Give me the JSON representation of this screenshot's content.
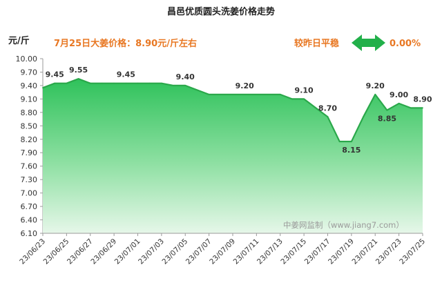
{
  "chart_data": {
    "type": "area",
    "title": "昌邑优质圆头洗姜价格走势",
    "ylabel": "元/斤",
    "price_note": "7月25日大姜价格：8.90元/斤左右",
    "trend_label": "较昨日平稳",
    "trend_change": "0.00%",
    "watermark": "中姜网监制（www.jiang7.com）",
    "ylim": [
      6.1,
      10.0
    ],
    "yticks": [
      "10.00",
      "9.70",
      "9.40",
      "9.10",
      "8.80",
      "8.50",
      "8.20",
      "7.90",
      "7.60",
      "7.30",
      "7.00",
      "6.70",
      "6.40",
      "6.10"
    ],
    "x": [
      "23/06/23",
      "23/06/24",
      "23/06/25",
      "23/06/26",
      "23/06/27",
      "23/06/28",
      "23/06/29",
      "23/06/30",
      "23/07/01",
      "23/07/02",
      "23/07/03",
      "23/07/04",
      "23/07/05",
      "23/07/06",
      "23/07/07",
      "23/07/08",
      "23/07/09",
      "23/07/10",
      "23/07/11",
      "23/07/12",
      "23/07/13",
      "23/07/14",
      "23/07/15",
      "23/07/16",
      "23/07/17",
      "23/07/18",
      "23/07/19",
      "23/07/20",
      "23/07/21",
      "23/07/22",
      "23/07/23",
      "23/07/24",
      "23/07/25"
    ],
    "xtick_labels": [
      "23/06/23",
      "23/06/25",
      "23/06/27",
      "23/06/29",
      "23/07/01",
      "23/07/03",
      "23/07/05",
      "23/07/07",
      "23/07/09",
      "23/07/11",
      "23/07/13",
      "23/07/15",
      "23/07/17",
      "23/07/19",
      "23/07/21",
      "23/07/23",
      "23/07/25"
    ],
    "series": [
      {
        "values": [
          9.35,
          9.45,
          9.45,
          9.55,
          9.45,
          9.45,
          9.45,
          9.45,
          9.45,
          9.45,
          9.45,
          9.4,
          9.4,
          9.3,
          9.2,
          9.2,
          9.2,
          9.2,
          9.2,
          9.2,
          9.2,
          9.1,
          9.1,
          8.9,
          8.7,
          8.15,
          8.15,
          8.7,
          9.2,
          8.85,
          9.0,
          8.9,
          8.9
        ]
      }
    ],
    "data_labels": [
      {
        "x": "23/06/24",
        "text": "9.45"
      },
      {
        "x": "23/06/26",
        "text": "9.55"
      },
      {
        "x": "23/06/30",
        "text": "9.45"
      },
      {
        "x": "23/07/05",
        "text": "9.40"
      },
      {
        "x": "23/07/10",
        "text": "9.20"
      },
      {
        "x": "23/07/15",
        "text": "9.10"
      },
      {
        "x": "23/07/17",
        "text": "8.70"
      },
      {
        "x": "23/07/19",
        "text": "8.15"
      },
      {
        "x": "23/07/21",
        "text": "9.20"
      },
      {
        "x": "23/07/22",
        "text": "8.85"
      },
      {
        "x": "23/07/23",
        "text": "9.00"
      },
      {
        "x": "23/07/25",
        "text": "8.90"
      }
    ],
    "colors": {
      "line": "#2aa84a",
      "fill_top": "#2fc25b",
      "fill_bottom": "#e6f7e9",
      "info_text": "#e87722",
      "arrow": "#22b04a"
    },
    "grid": false
  }
}
